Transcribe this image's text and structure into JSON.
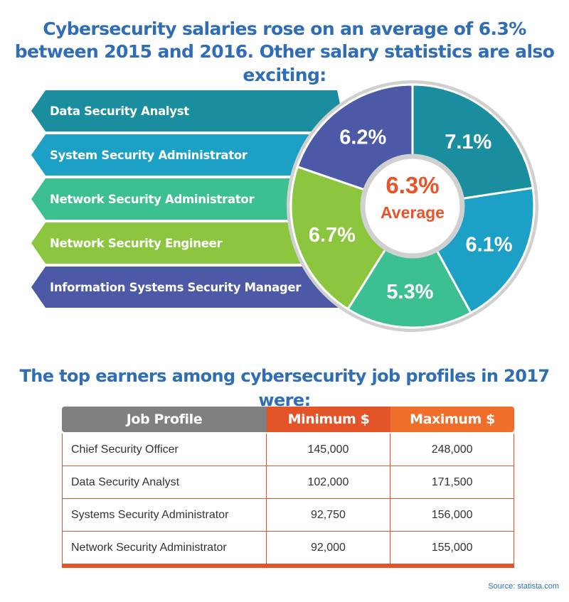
{
  "header": {
    "line1": "Cybersecurity salaries rose on an average of 6.3%",
    "line2": "between 2015 and 2016. Other salary statistics are also exciting:"
  },
  "colors": {
    "title": "#2f6db5",
    "accent": "#e8542a",
    "ring": "#d0d0d0"
  },
  "chart_data": {
    "type": "pie",
    "title": "",
    "categories": [
      "Data Security Analyst",
      "System Security Administrator",
      "Network Security Administrator",
      "Network Security Engineer",
      "Information Systems Security Manager"
    ],
    "values": [
      7.1,
      6.1,
      5.3,
      6.7,
      6.2
    ],
    "labels": [
      "7.1%",
      "6.1%",
      "5.3%",
      "6.7%",
      "6.2%"
    ],
    "colors": [
      "#1a8d9e",
      "#1ca0c6",
      "#3cbf91",
      "#8cc63f",
      "#4c59a6"
    ],
    "center": {
      "value": "6.3%",
      "text": "Average"
    }
  },
  "subheader": "The top earners among cybersecurity job profiles in 2017 were:",
  "table": {
    "headers": [
      "Job Profile",
      "Minimum $",
      "Maximum $"
    ],
    "rows": [
      [
        "Chief Security Officer",
        "145,000",
        "248,000"
      ],
      [
        "Data Security Analyst",
        "102,000",
        "171,500"
      ],
      [
        "Systems Security Administrator",
        "92,750",
        "156,000"
      ],
      [
        "Network Security Administrator",
        "92,000",
        "155,000"
      ]
    ]
  },
  "source": "Source: statista.com"
}
